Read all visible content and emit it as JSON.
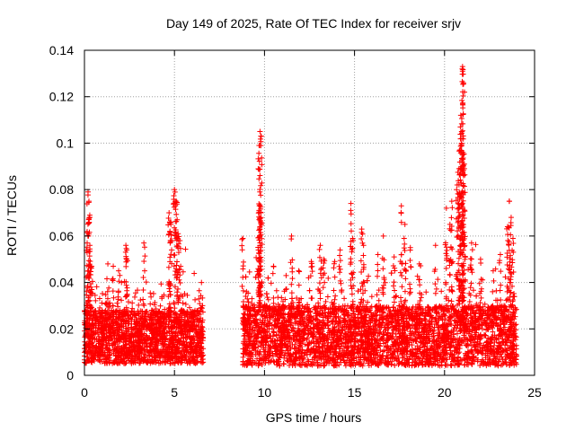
{
  "chart_data": {
    "type": "scatter",
    "title": "Day 149 of 2025, Rate Of TEC Index for receiver srjv",
    "xlabel": "GPS time / hours",
    "ylabel": "ROTI / TECUs",
    "xlim": [
      0,
      25
    ],
    "ylim": [
      0,
      0.14
    ],
    "x_ticks": [
      0,
      5,
      10,
      15,
      20,
      25
    ],
    "x_tick_labels": [
      "0",
      "5",
      "10",
      "15",
      "20",
      "25"
    ],
    "y_ticks": [
      0,
      0.02,
      0.04,
      0.06,
      0.08,
      0.1,
      0.12,
      0.14
    ],
    "y_tick_labels": [
      "0",
      "0.02",
      "0.04",
      "0.06",
      "0.08",
      "0.1",
      "0.12",
      "0.14"
    ],
    "grid": true,
    "marker": "+",
    "marker_color": "#ff0000",
    "series": [
      {
        "name": "ROTI",
        "segments": [
          {
            "x_start": 0.0,
            "x_end": 6.6,
            "typical_min": 0.005,
            "typical_max": 0.028
          },
          {
            "x_start": 8.8,
            "x_end": 24.0,
            "typical_min": 0.004,
            "typical_max": 0.03
          }
        ],
        "peaks": [
          {
            "x": 0.2,
            "y": 0.079
          },
          {
            "x": 0.25,
            "y": 0.075
          },
          {
            "x": 0.3,
            "y": 0.068
          },
          {
            "x": 0.15,
            "y": 0.057
          },
          {
            "x": 0.3,
            "y": 0.056
          },
          {
            "x": 0.4,
            "y": 0.047
          },
          {
            "x": 1.3,
            "y": 0.048
          },
          {
            "x": 1.6,
            "y": 0.047
          },
          {
            "x": 1.9,
            "y": 0.045
          },
          {
            "x": 2.3,
            "y": 0.056
          },
          {
            "x": 2.35,
            "y": 0.054
          },
          {
            "x": 3.3,
            "y": 0.057
          },
          {
            "x": 4.7,
            "y": 0.07
          },
          {
            "x": 4.8,
            "y": 0.066
          },
          {
            "x": 4.75,
            "y": 0.062
          },
          {
            "x": 5.0,
            "y": 0.08
          },
          {
            "x": 5.1,
            "y": 0.075
          },
          {
            "x": 5.15,
            "y": 0.067
          },
          {
            "x": 5.2,
            "y": 0.061
          },
          {
            "x": 5.3,
            "y": 0.058
          },
          {
            "x": 6.5,
            "y": 0.04
          },
          {
            "x": 8.8,
            "y": 0.059
          },
          {
            "x": 9.0,
            "y": 0.036
          },
          {
            "x": 9.75,
            "y": 0.105
          },
          {
            "x": 9.8,
            "y": 0.103
          },
          {
            "x": 9.7,
            "y": 0.099
          },
          {
            "x": 9.7,
            "y": 0.071
          },
          {
            "x": 9.8,
            "y": 0.07
          },
          {
            "x": 9.75,
            "y": 0.064
          },
          {
            "x": 10.5,
            "y": 0.047
          },
          {
            "x": 11.2,
            "y": 0.043
          },
          {
            "x": 11.5,
            "y": 0.06
          },
          {
            "x": 11.9,
            "y": 0.045
          },
          {
            "x": 12.6,
            "y": 0.049
          },
          {
            "x": 13.1,
            "y": 0.056
          },
          {
            "x": 13.3,
            "y": 0.05
          },
          {
            "x": 13.9,
            "y": 0.049
          },
          {
            "x": 14.2,
            "y": 0.054
          },
          {
            "x": 14.8,
            "y": 0.074
          },
          {
            "x": 14.9,
            "y": 0.059
          },
          {
            "x": 15.4,
            "y": 0.063
          },
          {
            "x": 15.5,
            "y": 0.056
          },
          {
            "x": 16.3,
            "y": 0.052
          },
          {
            "x": 16.6,
            "y": 0.06
          },
          {
            "x": 17.2,
            "y": 0.051
          },
          {
            "x": 17.6,
            "y": 0.073
          },
          {
            "x": 17.8,
            "y": 0.065
          },
          {
            "x": 18.1,
            "y": 0.055
          },
          {
            "x": 18.6,
            "y": 0.048
          },
          {
            "x": 19.5,
            "y": 0.056
          },
          {
            "x": 20.1,
            "y": 0.072
          },
          {
            "x": 20.3,
            "y": 0.065
          },
          {
            "x": 20.4,
            "y": 0.075
          },
          {
            "x": 20.7,
            "y": 0.082
          },
          {
            "x": 20.8,
            "y": 0.089
          },
          {
            "x": 20.85,
            "y": 0.097
          },
          {
            "x": 20.9,
            "y": 0.112
          },
          {
            "x": 20.95,
            "y": 0.105
          },
          {
            "x": 21.0,
            "y": 0.133
          },
          {
            "x": 21.0,
            "y": 0.131
          },
          {
            "x": 21.05,
            "y": 0.126
          },
          {
            "x": 21.1,
            "y": 0.091
          },
          {
            "x": 21.5,
            "y": 0.057
          },
          {
            "x": 22.0,
            "y": 0.05
          },
          {
            "x": 22.7,
            "y": 0.045
          },
          {
            "x": 23.1,
            "y": 0.052
          },
          {
            "x": 23.5,
            "y": 0.064
          },
          {
            "x": 23.6,
            "y": 0.075
          },
          {
            "x": 23.7,
            "y": 0.068
          },
          {
            "x": 23.8,
            "y": 0.059
          }
        ]
      }
    ]
  }
}
